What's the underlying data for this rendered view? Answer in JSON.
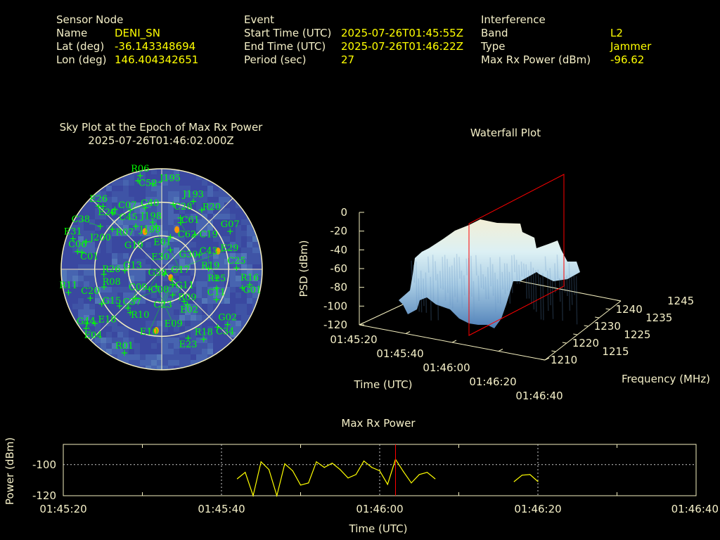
{
  "header": {
    "sensor": {
      "title": "Sensor Node",
      "name_label": "Name",
      "name": "DENI_SN",
      "lat_label": "Lat (deg)",
      "lat": "-36.143348694",
      "lon_label": "Lon (deg)",
      "lon": "146.404342651"
    },
    "event": {
      "title": "Event",
      "start_label": "Start Time (UTC)",
      "start": "2025-07-26T01:45:55Z",
      "end_label": "End Time (UTC)",
      "end": "2025-07-26T01:46:22Z",
      "period_label": "Period (sec)",
      "period": "27"
    },
    "interference": {
      "title": "Interference",
      "band_label": "Band",
      "band": "L2",
      "type_label": "Type",
      "type": "Jammer",
      "power_label": "Max Rx Power (dBm)",
      "power": "-96.62"
    }
  },
  "colors": {
    "label": "#f5f0c8",
    "value": "#ffff00",
    "satellite": "#00ff00",
    "jammer": "#ff9900",
    "marker": "#ff0000",
    "sky_bg": "#3a48a0"
  },
  "chart_data": [
    {
      "type": "scatter",
      "title": "Sky Plot at the Epoch of Max Rx Power",
      "subtitle": "2025-07-26T01:46:02.000Z",
      "projection": "polar azimuth/elevation",
      "elevation_rings": [
        0,
        30,
        60
      ],
      "azimuth_spokes_deg": [
        0,
        45,
        90,
        135,
        180,
        225,
        270,
        315
      ],
      "satellites": [
        {
          "id": "R06",
          "az": 347,
          "el": 4
        },
        {
          "id": "C52",
          "az": 345,
          "el": 8
        },
        {
          "id": "J195",
          "az": 354,
          "el": 13
        },
        {
          "id": "E26",
          "az": 315,
          "el": 10
        },
        {
          "id": "E20",
          "az": 317,
          "el": 13
        },
        {
          "id": "C07",
          "az": 322,
          "el": 22
        },
        {
          "id": "C40",
          "az": 332,
          "el": 30
        },
        {
          "id": "J198",
          "az": 345,
          "el": 33
        },
        {
          "id": "C28",
          "az": 10,
          "el": 31
        },
        {
          "id": "J193",
          "az": 25,
          "el": 23
        },
        {
          "id": "R20",
          "az": 34,
          "el": 26
        },
        {
          "id": "E01",
          "az": 349,
          "el": 47
        },
        {
          "id": "C61",
          "az": 20,
          "el": 41
        },
        {
          "id": "C62",
          "az": 22,
          "el": 45
        },
        {
          "id": "C38",
          "az": 305,
          "el": 23
        },
        {
          "id": "R07",
          "az": 309,
          "el": 33
        },
        {
          "id": "C45",
          "az": 319,
          "el": 23
        },
        {
          "id": "J199",
          "az": 329,
          "el": 45
        },
        {
          "id": "G19",
          "az": 353,
          "el": 51
        },
        {
          "id": "E30",
          "az": 15,
          "el": 60
        },
        {
          "id": "C19",
          "az": 44,
          "el": 47
        },
        {
          "id": "G07",
          "az": 61,
          "el": 20
        },
        {
          "id": "E31",
          "az": 289,
          "el": 6
        },
        {
          "id": "J200",
          "az": 290,
          "el": 18
        },
        {
          "id": "C06",
          "az": 282,
          "el": 13
        },
        {
          "id": "C01",
          "az": 282,
          "el": 17
        },
        {
          "id": "G17",
          "az": 24,
          "el": 71
        },
        {
          "id": "G30",
          "az": 69,
          "el": 54
        },
        {
          "id": "C43",
          "az": 89,
          "el": 48
        },
        {
          "id": "C25",
          "az": 89,
          "el": 23
        },
        {
          "id": "G13",
          "az": 268,
          "el": 57
        },
        {
          "id": "R26",
          "az": 265,
          "el": 38
        },
        {
          "id": "R08",
          "az": 253,
          "el": 36
        },
        {
          "id": "R19",
          "az": 99,
          "el": 40
        },
        {
          "id": "R16",
          "az": 100,
          "el": 10
        },
        {
          "id": "G01",
          "az": 103,
          "el": 16
        },
        {
          "id": "R25",
          "az": 109,
          "el": 38
        },
        {
          "id": "C11",
          "az": 119,
          "el": 34
        },
        {
          "id": "E29",
          "az": 150,
          "el": 85
        },
        {
          "id": "E09",
          "az": 198,
          "el": 74
        },
        {
          "id": "G59",
          "az": 212,
          "el": 69
        },
        {
          "id": "E10",
          "az": 133,
          "el": 77
        },
        {
          "id": "C23",
          "az": 144,
          "el": 73
        },
        {
          "id": "G11",
          "az": 157,
          "el": 65
        },
        {
          "id": "E02",
          "az": 145,
          "el": 55
        },
        {
          "id": "R09",
          "az": 144,
          "el": 51
        },
        {
          "id": "R11",
          "az": 256,
          "el": 4
        },
        {
          "id": "C20",
          "az": 248,
          "el": 21
        },
        {
          "id": "G15",
          "az": 240,
          "el": 28
        },
        {
          "id": "C37",
          "az": 229,
          "el": 40
        },
        {
          "id": "C09",
          "az": 221,
          "el": 44
        },
        {
          "id": "C08",
          "az": 222,
          "el": 55
        },
        {
          "id": "R10",
          "az": 216,
          "el": 42
        },
        {
          "id": "E04",
          "az": 234,
          "el": 7
        },
        {
          "id": "E18",
          "az": 231,
          "el": 13
        },
        {
          "id": "G44",
          "az": 232,
          "el": 4
        },
        {
          "id": "C34",
          "az": 136,
          "el": 18
        },
        {
          "id": "G02",
          "az": 130,
          "el": 13
        },
        {
          "id": "E23",
          "az": 159,
          "el": 24
        },
        {
          "id": "R18",
          "az": 149,
          "el": 17
        },
        {
          "id": "R01",
          "az": 204,
          "el": 8
        }
      ],
      "jammer_detections": [
        {
          "az": 336,
          "el": 53
        },
        {
          "az": 21,
          "el": 52
        },
        {
          "az": 72,
          "el": 37
        },
        {
          "az": 133,
          "el": 79
        },
        {
          "az": 185,
          "el": 35
        }
      ]
    },
    {
      "type": "area",
      "title": "Waterfall Plot",
      "xlabel": "Time (UTC)",
      "ylabel": "Frequency (MHz)",
      "zlabel": "PSD (dBm)",
      "x_ticks": [
        "01:45:20",
        "01:45:40",
        "01:46:00",
        "01:46:20",
        "01:46:40"
      ],
      "y_ticks": [
        "1210",
        "1215",
        "1220",
        "1225",
        "1230",
        "1235",
        "1240",
        "1245"
      ],
      "z_ticks": [
        "0",
        "-20",
        "-40",
        "-60",
        "-80",
        "-100",
        "-120"
      ],
      "zlim": [
        -120,
        0
      ],
      "marker_time": "01:46:02"
    },
    {
      "type": "line",
      "title": "Max Rx Power",
      "xlabel": "Time (UTC)",
      "ylabel": "Power (dBm)",
      "x_ticks": [
        "01:45:20",
        "01:45:40",
        "01:46:00",
        "01:46:20",
        "01:46:40"
      ],
      "y_ticks": [
        "-100",
        "-120"
      ],
      "xlim": [
        "01:45:20",
        "01:46:40"
      ],
      "ylim": [
        -120,
        -87
      ],
      "grid": true,
      "marker_time": "01:46:02",
      "segments": [
        [
          {
            "t": "01:45:42",
            "p": -109.1
          },
          {
            "t": "01:45:43",
            "p": -105.0
          },
          {
            "t": "01:45:44",
            "p": -120.0
          },
          {
            "t": "01:45:45",
            "p": -98.2
          },
          {
            "t": "01:45:46",
            "p": -103.2
          },
          {
            "t": "01:45:47",
            "p": -120.0
          },
          {
            "t": "01:45:48",
            "p": -99.5
          },
          {
            "t": "01:45:49",
            "p": -104.0
          },
          {
            "t": "01:45:50",
            "p": -113.2
          },
          {
            "t": "01:45:51",
            "p": -111.8
          },
          {
            "t": "01:45:52",
            "p": -98.2
          },
          {
            "t": "01:45:53",
            "p": -101.8
          },
          {
            "t": "01:45:54",
            "p": -99.1
          },
          {
            "t": "01:45:55",
            "p": -103.2
          },
          {
            "t": "01:45:56",
            "p": -108.6
          },
          {
            "t": "01:45:57",
            "p": -106.4
          },
          {
            "t": "01:45:58",
            "p": -97.7
          },
          {
            "t": "01:45:59",
            "p": -101.8
          },
          {
            "t": "01:46:00",
            "p": -104.0
          },
          {
            "t": "01:46:01",
            "p": -112.7
          },
          {
            "t": "01:46:02",
            "p": -96.62
          },
          {
            "t": "01:46:03",
            "p": -104.5
          },
          {
            "t": "01:46:04",
            "p": -111.8
          },
          {
            "t": "01:46:05",
            "p": -106.4
          },
          {
            "t": "01:46:06",
            "p": -105.0
          },
          {
            "t": "01:46:07",
            "p": -109.1
          }
        ],
        [
          {
            "t": "01:46:17",
            "p": -110.9
          },
          {
            "t": "01:46:18",
            "p": -106.8
          },
          {
            "t": "01:46:19",
            "p": -106.4
          },
          {
            "t": "01:46:20",
            "p": -110.9
          }
        ]
      ]
    }
  ]
}
